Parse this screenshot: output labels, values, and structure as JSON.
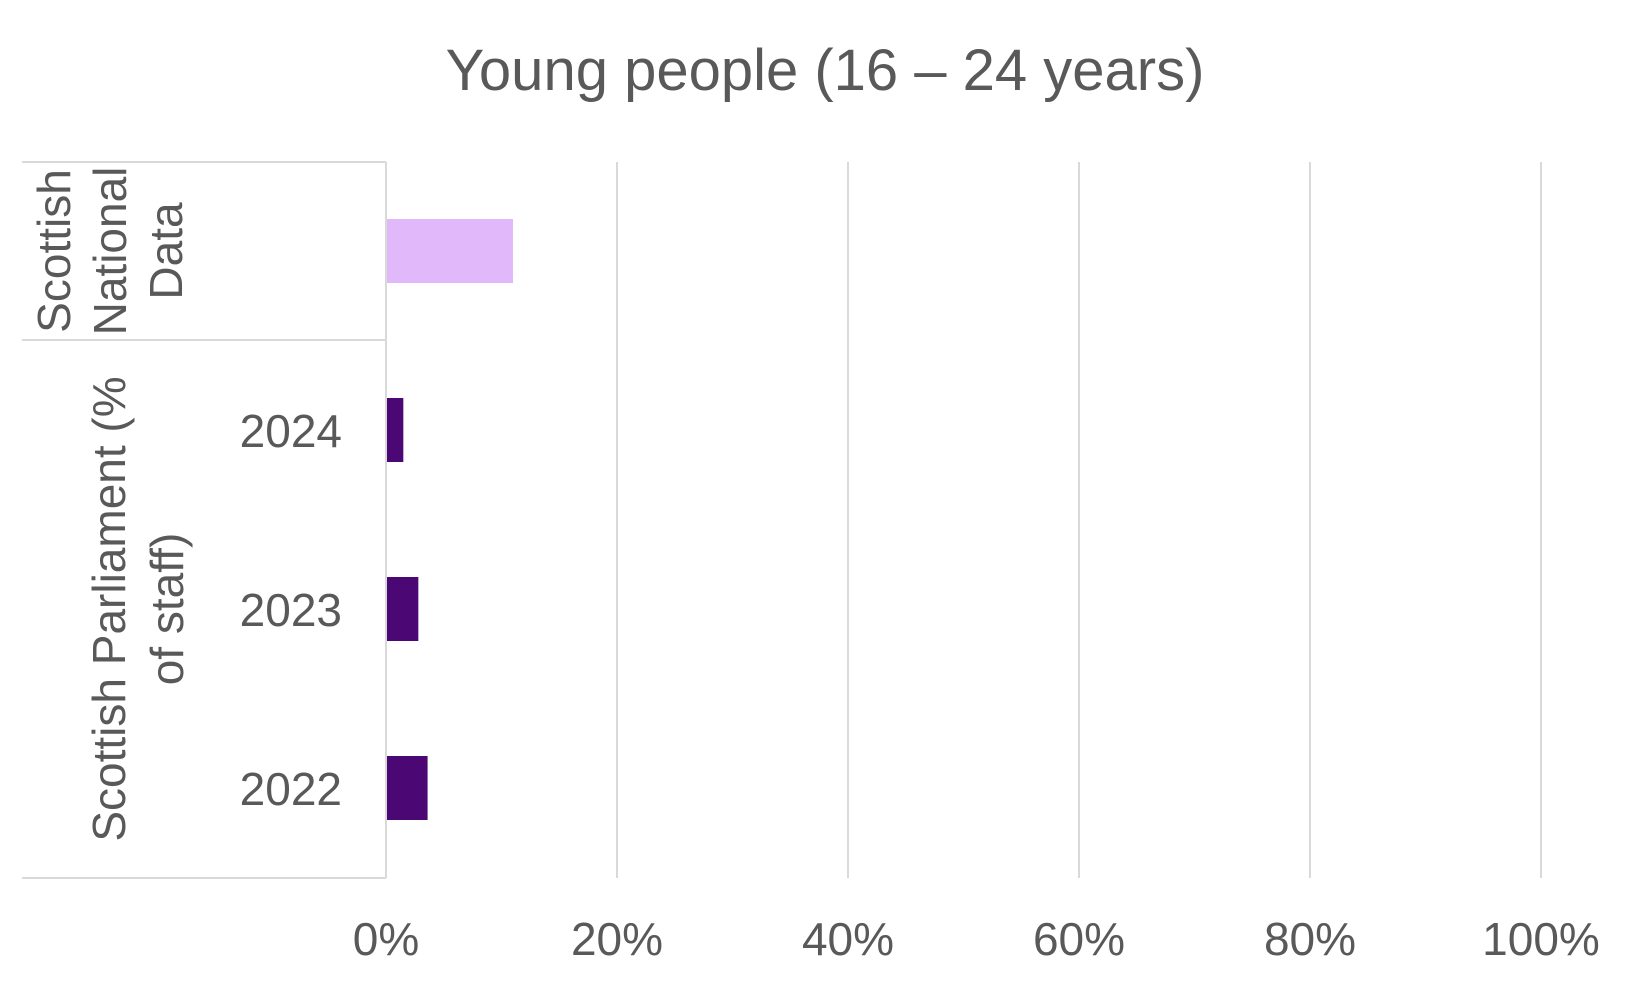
{
  "chart_data": {
    "type": "bar",
    "orientation": "horizontal",
    "title": "Young people (16 – 24 years)",
    "groups": [
      {
        "label": "Scottish National Data",
        "label_lines": [
          "Scottish",
          "National",
          "Data"
        ],
        "categories": [
          ""
        ]
      },
      {
        "label": "Scottish Parliament (% of staff)",
        "label_lines": [
          "Scottish Parliament (%",
          "of staff)"
        ],
        "categories": [
          "2024",
          "2023",
          "2022"
        ]
      }
    ],
    "categories": [
      "Scottish National Data",
      "2024",
      "2023",
      "2022"
    ],
    "values": [
      11,
      1.5,
      2.8,
      3.6
    ],
    "xlim": [
      0,
      100
    ],
    "xticks": [
      0,
      20,
      40,
      60,
      80,
      100
    ],
    "xtick_labels": [
      "0%",
      "20%",
      "40%",
      "60%",
      "80%",
      "100%"
    ],
    "grid": true,
    "legend": "none",
    "colors": {
      "national": "#e1b8fa",
      "parliament": "#4b0874",
      "grid": "#d9d9d9",
      "text": "#595959"
    }
  }
}
